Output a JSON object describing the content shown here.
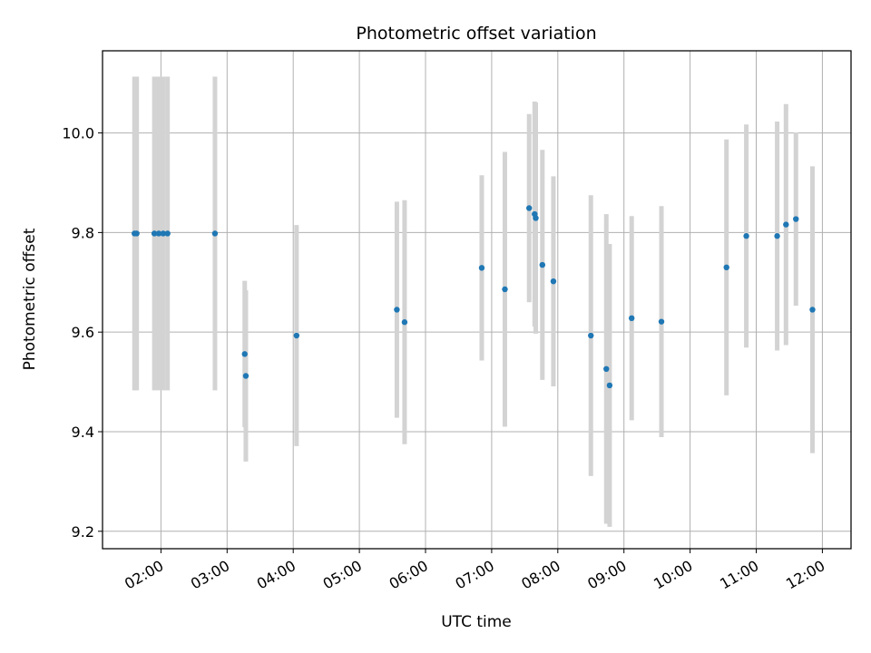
{
  "chart_data": {
    "type": "scatter",
    "title": "Photometric offset variation",
    "xlabel": "UTC time",
    "ylabel": "Photometric offset",
    "grid": true,
    "x_ticks": [
      "02:00",
      "03:00",
      "04:00",
      "05:00",
      "06:00",
      "07:00",
      "08:00",
      "09:00",
      "10:00",
      "11:00",
      "12:00"
    ],
    "y_ticks": [
      "9.2",
      "9.4",
      "9.6",
      "9.8",
      "10.0"
    ],
    "xlim": [
      "01:07",
      "12:26"
    ],
    "ylim": [
      9.165,
      10.165
    ],
    "colors": {
      "point": "#1f77b4",
      "errorbar": "#d3d3d3",
      "grid": "#b0b0b0"
    },
    "series": [
      {
        "points": [
          {
            "x": "01:36",
            "y": 9.798,
            "yerr": 0.315
          },
          {
            "x": "01:38",
            "y": 9.798,
            "yerr": 0.315
          },
          {
            "x": "01:54",
            "y": 9.798,
            "yerr": 0.315
          },
          {
            "x": "01:58",
            "y": 9.798,
            "yerr": 0.315
          },
          {
            "x": "02:02",
            "y": 9.798,
            "yerr": 0.315
          },
          {
            "x": "02:06",
            "y": 9.798,
            "yerr": 0.315
          },
          {
            "x": "02:49",
            "y": 9.798,
            "yerr": 0.315
          },
          {
            "x": "03:16",
            "y": 9.556,
            "yerr": 0.147
          },
          {
            "x": "03:17",
            "y": 9.512,
            "yerr": 0.172
          },
          {
            "x": "04:03",
            "y": 9.593,
            "yerr": 0.222
          },
          {
            "x": "05:34",
            "y": 9.645,
            "yerr": 0.217
          },
          {
            "x": "05:41",
            "y": 9.62,
            "yerr": 0.245
          },
          {
            "x": "06:51",
            "y": 9.729,
            "yerr": 0.186
          },
          {
            "x": "07:12",
            "y": 9.686,
            "yerr": 0.276
          },
          {
            "x": "07:34",
            "y": 9.849,
            "yerr": 0.189
          },
          {
            "x": "07:39",
            "y": 9.837,
            "yerr": 0.226
          },
          {
            "x": "07:40",
            "y": 9.829,
            "yerr": 0.232
          },
          {
            "x": "07:46",
            "y": 9.735,
            "yerr": 0.231
          },
          {
            "x": "07:56",
            "y": 9.702,
            "yerr": 0.211
          },
          {
            "x": "08:30",
            "y": 9.593,
            "yerr": 0.282
          },
          {
            "x": "08:44",
            "y": 9.526,
            "yerr": 0.311
          },
          {
            "x": "08:47",
            "y": 9.493,
            "yerr": 0.284
          },
          {
            "x": "09:07",
            "y": 9.628,
            "yerr": 0.205
          },
          {
            "x": "09:34",
            "y": 9.621,
            "yerr": 0.232
          },
          {
            "x": "10:33",
            "y": 9.73,
            "yerr": 0.257
          },
          {
            "x": "10:51",
            "y": 9.793,
            "yerr": 0.224
          },
          {
            "x": "11:19",
            "y": 9.793,
            "yerr": 0.23
          },
          {
            "x": "11:27",
            "y": 9.816,
            "yerr": 0.242
          },
          {
            "x": "11:36",
            "y": 9.827,
            "yerr": 0.174
          },
          {
            "x": "11:51",
            "y": 9.645,
            "yerr": 0.288
          }
        ]
      }
    ]
  }
}
